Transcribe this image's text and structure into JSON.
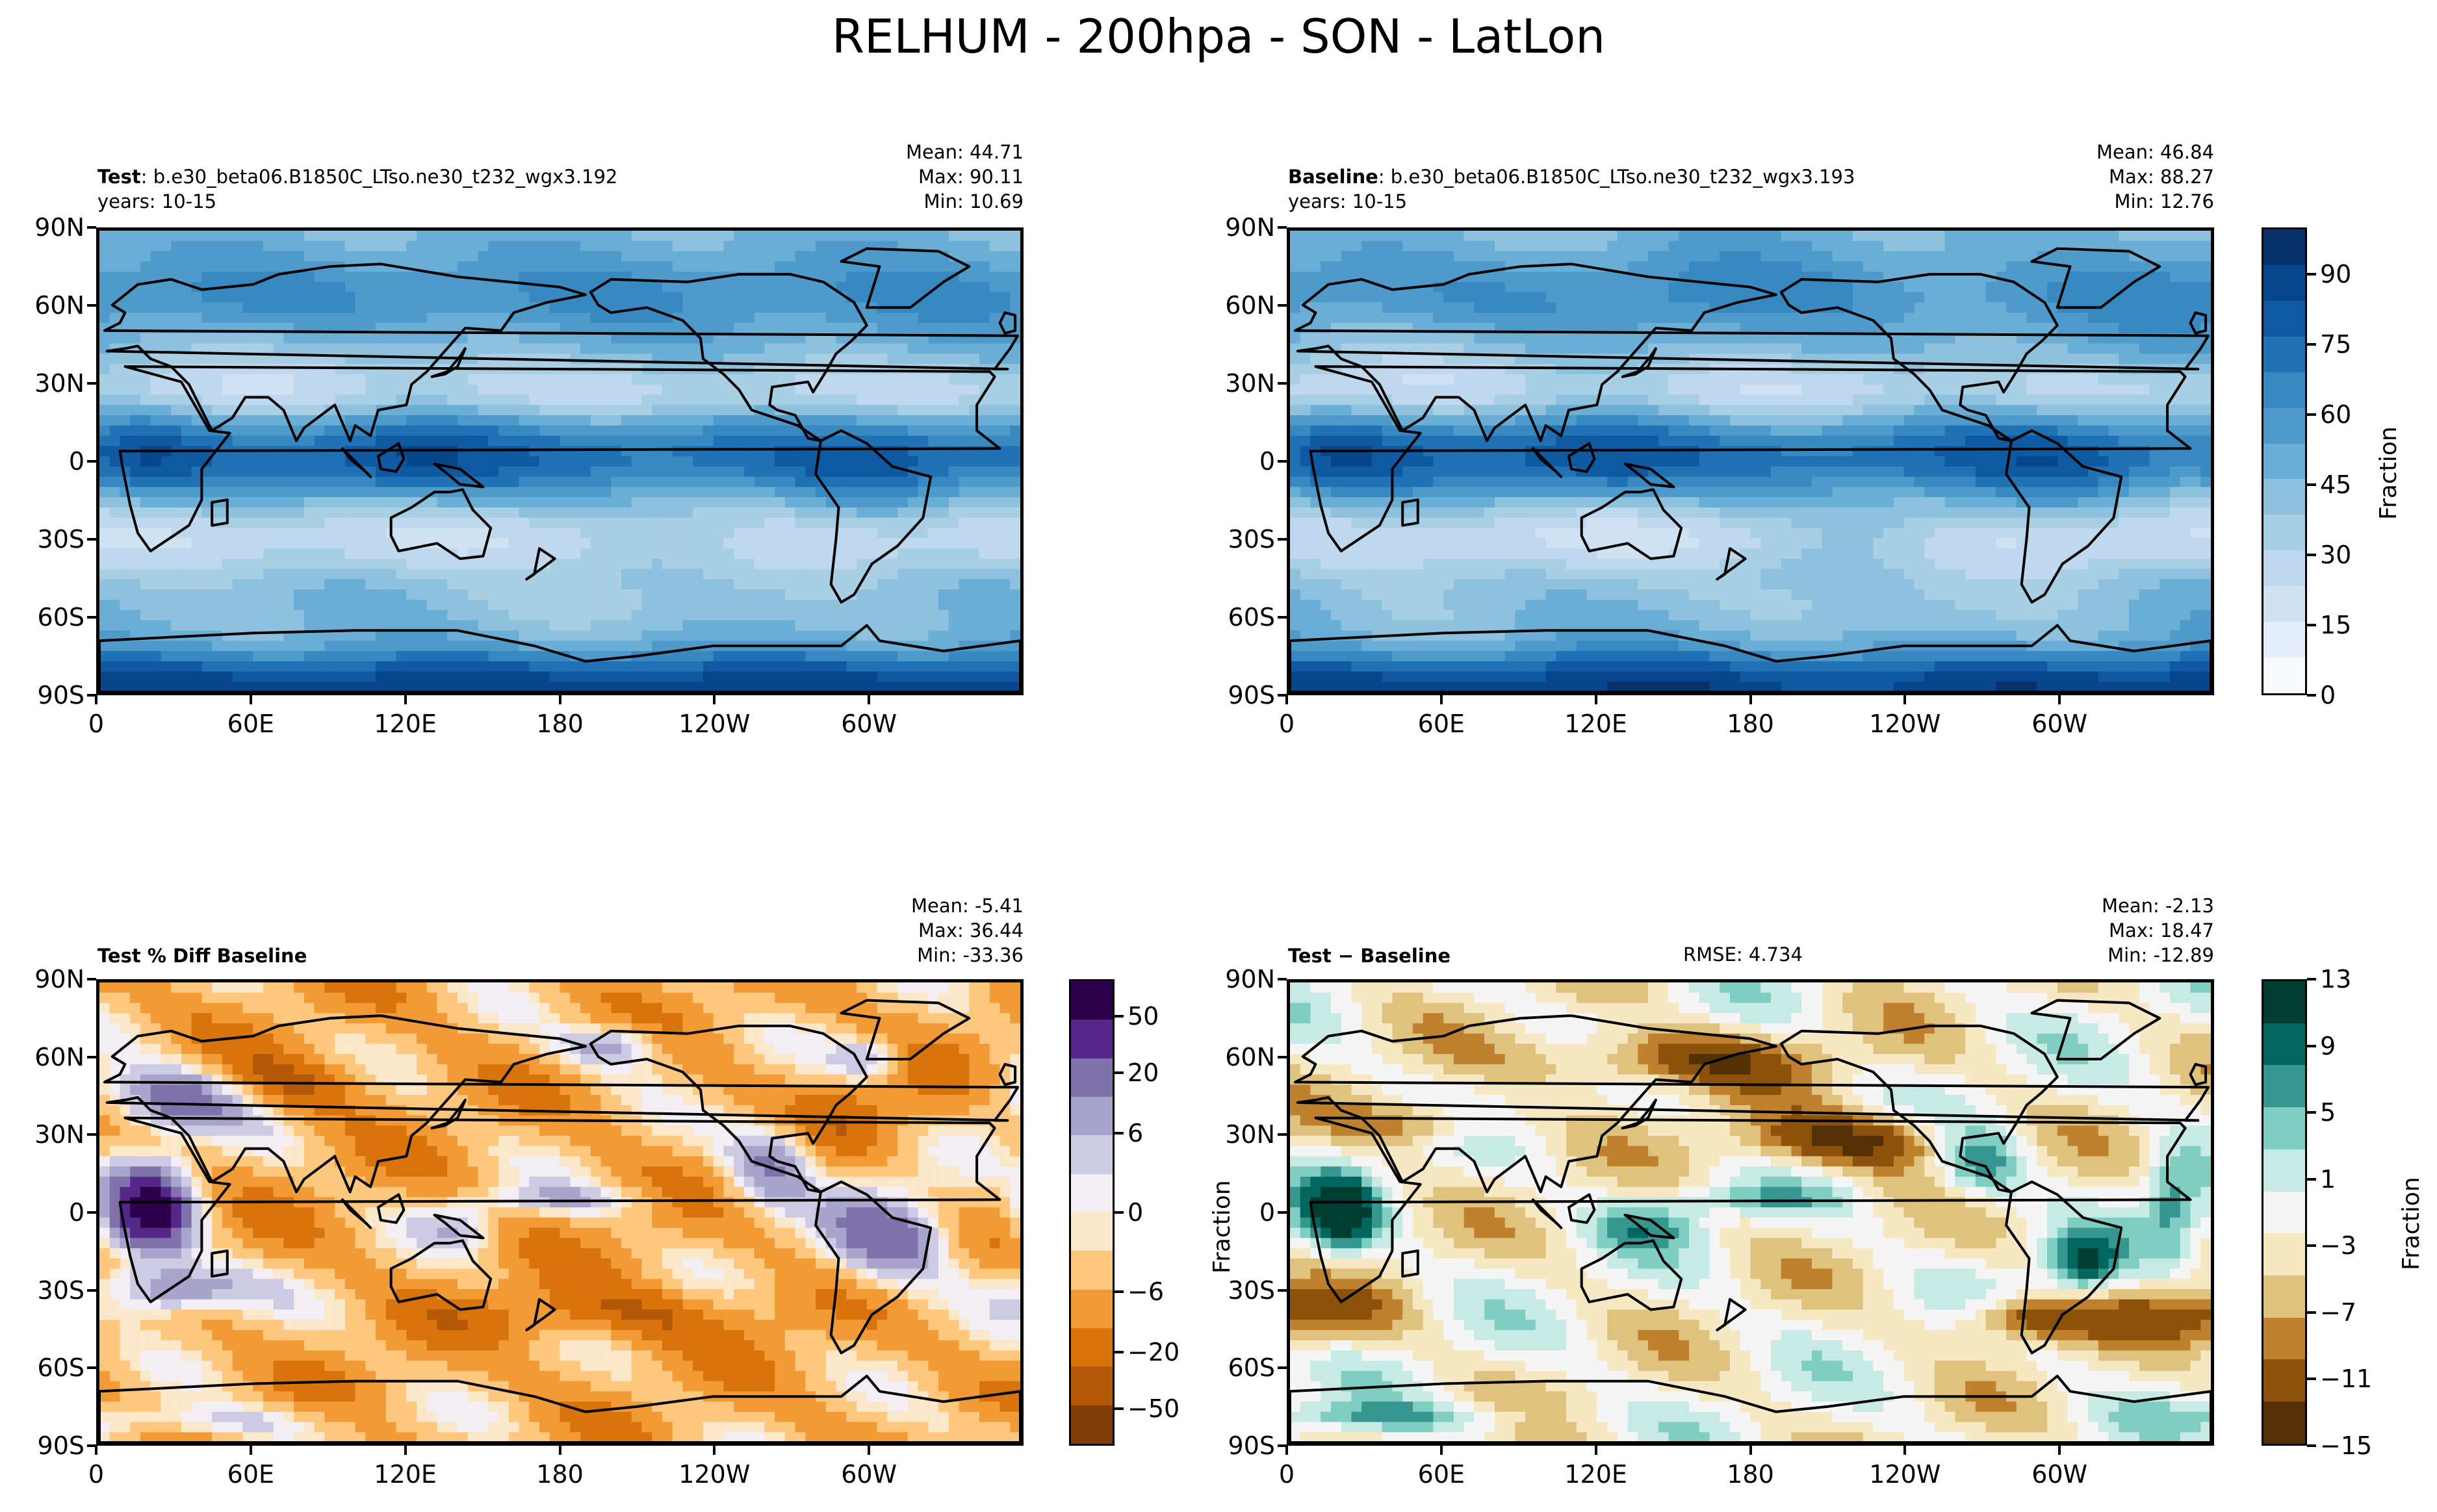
{
  "figure_title": "RELHUM - 200hpa - SON - LatLon",
  "panels": {
    "test": {
      "label_bold": "Test",
      "label_rest": ": b.e30_beta06.B1850C_LTso.ne30_t232_wgx3.192",
      "years": "years: 10-15",
      "mean": "Mean: 44.71",
      "max": "Max: 90.11",
      "min": "Min: 10.69"
    },
    "baseline": {
      "label_bold": "Baseline",
      "label_rest": ": b.e30_beta06.B1850C_LTso.ne30_t232_wgx3.193",
      "years": "years: 10-15",
      "mean": "Mean: 46.84",
      "max": "Max: 88.27",
      "min": "Min: 12.76"
    },
    "pctdiff": {
      "label_bold": "Test % Diff Baseline",
      "mean": "Mean: -5.41",
      "max": "Max: 36.44",
      "min": "Min: -33.36"
    },
    "diff": {
      "label_bold": "Test − Baseline",
      "rmse": "RMSE: 4.734",
      "mean": "Mean: -2.13",
      "max": "Max: 18.47",
      "min": "Min: -12.89"
    }
  },
  "axis": {
    "lat_ticks": [
      "90N",
      "60N",
      "30N",
      "0",
      "30S",
      "60S",
      "90S"
    ],
    "lon_ticks": [
      "0",
      "60E",
      "120E",
      "180",
      "120W",
      "60W"
    ]
  },
  "colorbars": {
    "relhum": {
      "label": "Fraction",
      "ticks": [
        "90",
        "75",
        "60",
        "45",
        "30",
        "15",
        "0"
      ]
    },
    "pctdiff": {
      "ticks": [
        "50",
        "20",
        "6",
        "0",
        "−6",
        "−20",
        "−50"
      ]
    },
    "diff": {
      "label": "Fraction",
      "ticks": [
        "13",
        "9",
        "5",
        "1",
        "−3",
        "−7",
        "−11",
        "−15"
      ]
    },
    "diff_side_label": "Fraction"
  },
  "colors": {
    "blues": [
      "#f7fbff",
      "#e3eef9",
      "#d0e2f2",
      "#bfd8ed",
      "#a9cfe5",
      "#8dc1dd",
      "#6aaed6",
      "#4e9acb",
      "#3888c1",
      "#2171b5",
      "#0e59a2",
      "#08468b",
      "#08306b"
    ],
    "puor": [
      "#2d004b",
      "#542788",
      "#8073ac",
      "#a8a4cc",
      "#cdcbe4",
      "#f2eef4",
      "#fbe7c9",
      "#fdc77d",
      "#f29b36",
      "#d9730c",
      "#b35806",
      "#7f3b08"
    ],
    "brbg": [
      "#003c30",
      "#01665e",
      "#35978f",
      "#80cdc1",
      "#c7eae5",
      "#f5f5f5",
      "#f6e8c3",
      "#dfc27d",
      "#bf812d",
      "#8c510a",
      "#543005"
    ]
  },
  "chart_data": [
    {
      "type": "heatmap",
      "title": "Test: b.e30_beta06.B1850C_LTso.ne30_t232_wgx3.192",
      "variable": "RELHUM",
      "level": "200hpa",
      "season": "SON",
      "x_range": [
        0,
        360
      ],
      "y_range": [
        -90,
        90
      ],
      "colorbar_range": [
        0,
        100
      ],
      "units": "Fraction",
      "stats": {
        "mean": 44.71,
        "max": 90.11,
        "min": 10.69
      }
    },
    {
      "type": "heatmap",
      "title": "Baseline: b.e30_beta06.B1850C_LTso.ne30_t232_wgx3.193",
      "x_range": [
        0,
        360
      ],
      "y_range": [
        -90,
        90
      ],
      "colorbar_range": [
        0,
        100
      ],
      "units": "Fraction",
      "stats": {
        "mean": 46.84,
        "max": 88.27,
        "min": 12.76
      }
    },
    {
      "type": "heatmap",
      "title": "Test % Diff Baseline",
      "x_range": [
        0,
        360
      ],
      "y_range": [
        -90,
        90
      ],
      "colorbar_levels": [
        -50,
        -20,
        -6,
        0,
        6,
        20,
        50
      ],
      "stats": {
        "mean": -5.41,
        "max": 36.44,
        "min": -33.36
      }
    },
    {
      "type": "heatmap",
      "title": "Test − Baseline",
      "x_range": [
        0,
        360
      ],
      "y_range": [
        -90,
        90
      ],
      "colorbar_range": [
        -15,
        13
      ],
      "units": "Fraction",
      "stats": {
        "mean": -2.13,
        "max": 18.47,
        "min": -12.89,
        "rmse": 4.734
      }
    }
  ]
}
